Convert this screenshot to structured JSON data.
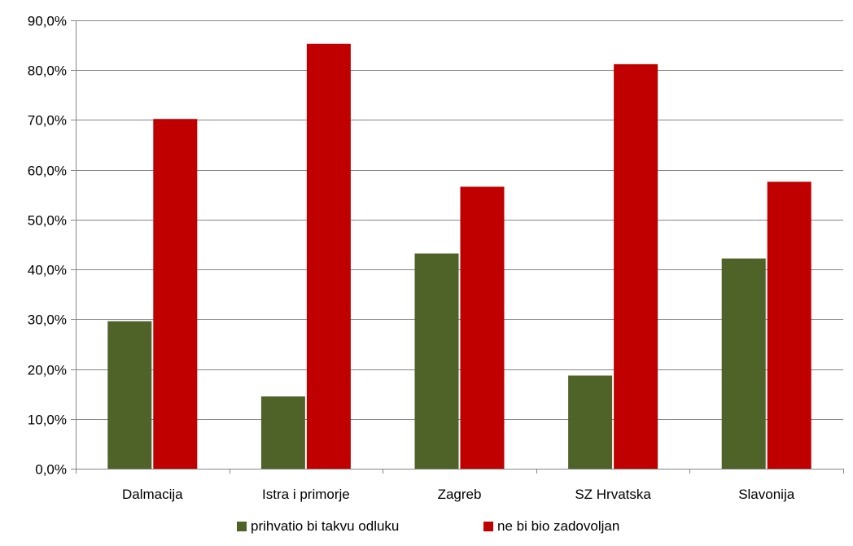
{
  "chart_data": {
    "type": "bar",
    "categories": [
      "Dalmacija",
      "Istra i primorje",
      "Zagreb",
      "SZ Hrvatska",
      "Slavonija"
    ],
    "series": [
      {
        "name": "prihvatio bi takvu odluku",
        "values": [
          29.6,
          14.5,
          43.2,
          18.7,
          42.2
        ],
        "color": "#4f6228"
      },
      {
        "name": "ne bi bio zadovoljan",
        "values": [
          70.2,
          85.3,
          56.6,
          81.2,
          57.6
        ],
        "color": "#c00000"
      }
    ],
    "ylim": [
      0,
      90
    ],
    "yticks": [
      "0,0%",
      "10,0%",
      "20,0%",
      "30,0%",
      "40,0%",
      "50,0%",
      "60,0%",
      "70,0%",
      "80,0%",
      "90,0%"
    ],
    "grid": true,
    "legend": "bottom",
    "gridline_color": "#868686",
    "axis_color": "#868686"
  }
}
